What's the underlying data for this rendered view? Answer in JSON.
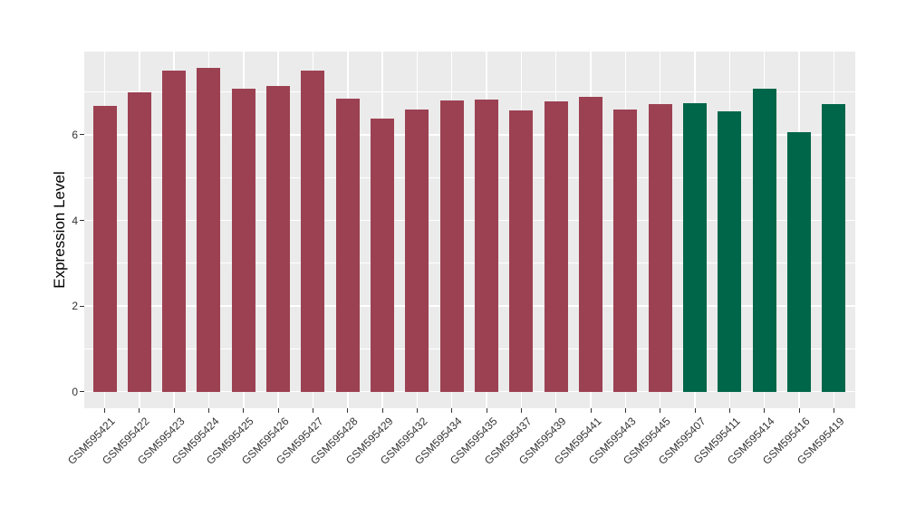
{
  "style": {
    "page_background": "#FFFFFF",
    "panel_background": "#EBEBEB",
    "gridline_color": "#FFFFFF",
    "axis_text_color": "#333333",
    "axis_title_color": "#000000"
  },
  "chart_data": {
    "type": "bar",
    "title": "",
    "xlabel": "",
    "ylabel": "Expression Level",
    "ylim": [
      0,
      7.94
    ],
    "yticks_major": [
      0,
      2,
      4,
      6
    ],
    "yticks_minor": [
      1,
      3,
      5,
      7
    ],
    "grid": true,
    "legend_position": "none",
    "categories": [
      "GSM595421",
      "GSM595422",
      "GSM595423",
      "GSM595424",
      "GSM595425",
      "GSM595426",
      "GSM595427",
      "GSM595428",
      "GSM595429",
      "GSM595432",
      "GSM595434",
      "GSM595435",
      "GSM595437",
      "GSM595439",
      "GSM595441",
      "GSM595443",
      "GSM595445",
      "GSM595407",
      "GSM595411",
      "GSM595414",
      "GSM595416",
      "GSM595419"
    ],
    "values": [
      6.67,
      7.0,
      7.49,
      7.57,
      7.08,
      7.15,
      7.5,
      6.85,
      6.37,
      6.58,
      6.81,
      6.82,
      6.57,
      6.77,
      6.89,
      6.59,
      6.72,
      6.74,
      6.54,
      7.08,
      6.06,
      6.72
    ],
    "bar_color_index": [
      0,
      0,
      0,
      0,
      0,
      0,
      0,
      0,
      0,
      0,
      0,
      0,
      0,
      0,
      0,
      0,
      0,
      1,
      1,
      1,
      1,
      1
    ],
    "bar_colors": [
      "#9C4152",
      "#006649"
    ]
  }
}
